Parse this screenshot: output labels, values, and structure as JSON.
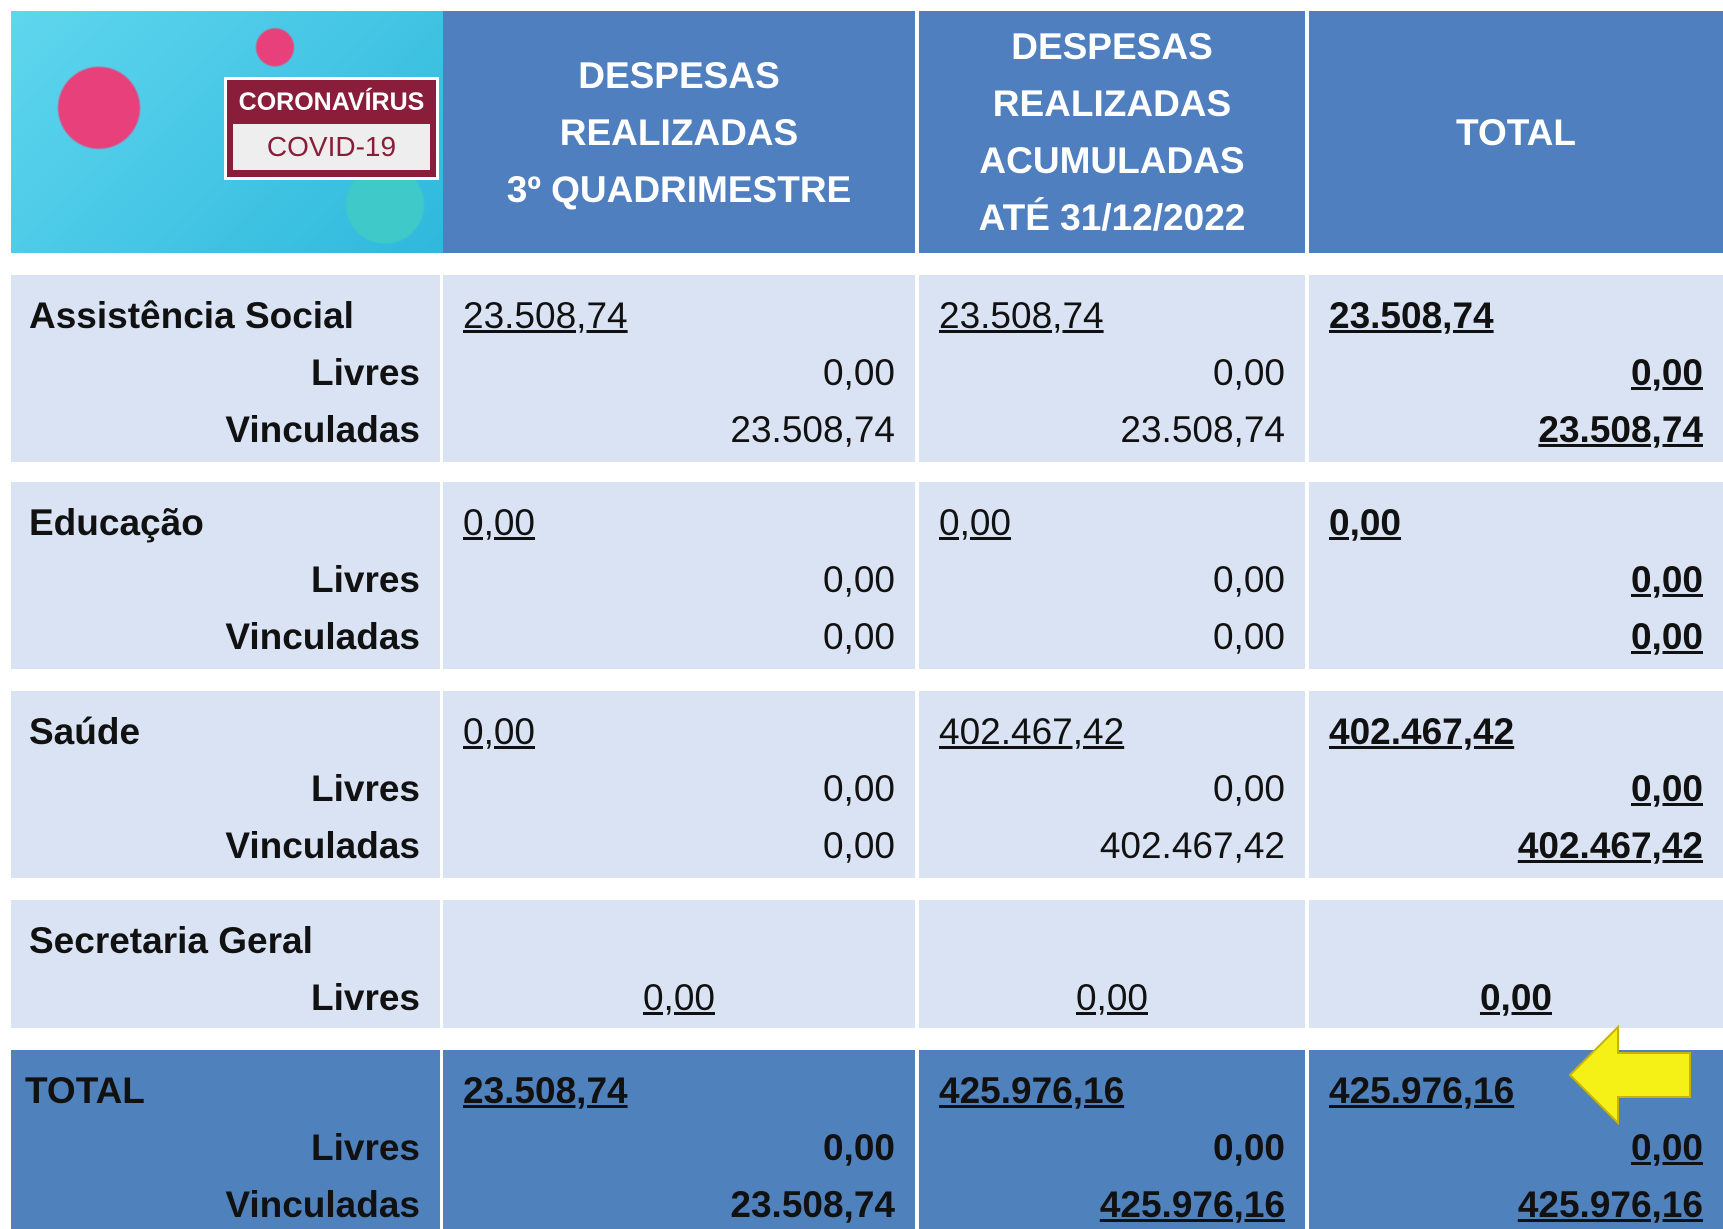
{
  "header": {
    "image_label": [
      "CORONAVÍRUS",
      "COVID-19"
    ],
    "columns": [
      [
        "DESPESAS",
        "REALIZADAS",
        "3º  QUADRIMESTRE"
      ],
      [
        "DESPESAS",
        "REALIZADAS",
        "ACUMULADAS",
        "ATÉ 31/12/2022"
      ],
      [
        "TOTAL"
      ]
    ]
  },
  "groups": [
    {
      "name": "Assistência Social",
      "values": [
        "23.508,74",
        "23.508,74",
        "23.508,74"
      ],
      "rows": [
        {
          "label": "Livres",
          "values": [
            "0,00",
            "0,00",
            "0,00"
          ]
        },
        {
          "label": "Vinculadas",
          "values": [
            "23.508,74",
            "23.508,74",
            "23.508,74"
          ]
        }
      ]
    },
    {
      "name": "Educação",
      "values": [
        "0,00",
        "0,00",
        "0,00"
      ],
      "rows": [
        {
          "label": "Livres",
          "values": [
            "0,00",
            "0,00",
            "0,00"
          ]
        },
        {
          "label": "Vinculadas",
          "values": [
            "0,00",
            "0,00",
            "0,00"
          ]
        }
      ]
    },
    {
      "name": "Saúde",
      "values": [
        "0,00",
        "402.467,42",
        "402.467,42"
      ],
      "rows": [
        {
          "label": "Livres",
          "values": [
            "0,00",
            "0,00",
            "0,00"
          ]
        },
        {
          "label": "Vinculadas",
          "values": [
            "0,00",
            "402.467,42",
            "402.467,42"
          ]
        }
      ]
    },
    {
      "name": "Secretaria Geral",
      "rows": [
        {
          "label": "Livres",
          "values": [
            "0,00",
            "0,00",
            "0,00"
          ]
        }
      ]
    },
    {
      "name": "TOTAL",
      "values": [
        "23.508,74",
        "425.976,16",
        "425.976,16"
      ],
      "rows": [
        {
          "label": "Livres",
          "values": [
            "0,00",
            "0,00",
            "0,00"
          ]
        },
        {
          "label": "Vinculadas",
          "values": [
            "23.508,74",
            "425.976,16",
            "425.976,16"
          ]
        }
      ]
    }
  ]
}
